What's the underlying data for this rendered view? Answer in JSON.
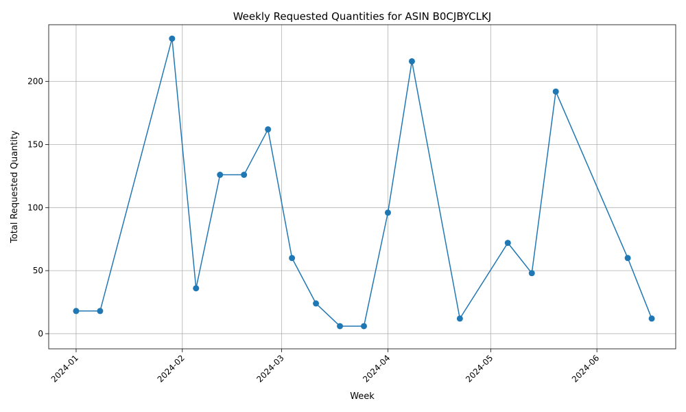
{
  "chart_data": {
    "type": "line",
    "title": "Weekly Requested Quantities for ASIN B0CJBYCLKJ",
    "xlabel": "Week",
    "ylabel": "Total Requested Quantity",
    "grid": true,
    "color": "#1f77b4",
    "x_range": [
      "2023-12-24",
      "2024-06-24"
    ],
    "ylim": [
      -12,
      245
    ],
    "x_ticks": [
      {
        "date": "2024-01-01",
        "label": "2024-01"
      },
      {
        "date": "2024-02-01",
        "label": "2024-02"
      },
      {
        "date": "2024-03-01",
        "label": "2024-03"
      },
      {
        "date": "2024-04-01",
        "label": "2024-04"
      },
      {
        "date": "2024-05-01",
        "label": "2024-05"
      },
      {
        "date": "2024-06-01",
        "label": "2024-06"
      }
    ],
    "y_ticks": [
      {
        "value": 0,
        "label": "0"
      },
      {
        "value": 50,
        "label": "50"
      },
      {
        "value": 100,
        "label": "100"
      },
      {
        "value": 150,
        "label": "150"
      },
      {
        "value": 200,
        "label": "200"
      }
    ],
    "series": [
      {
        "name": "Total Requested Quantity",
        "points": [
          {
            "x": "2024-01-01",
            "y": 18
          },
          {
            "x": "2024-01-08",
            "y": 18
          },
          {
            "x": "2024-01-29",
            "y": 234
          },
          {
            "x": "2024-02-05",
            "y": 36
          },
          {
            "x": "2024-02-12",
            "y": 126
          },
          {
            "x": "2024-02-19",
            "y": 126
          },
          {
            "x": "2024-02-26",
            "y": 162
          },
          {
            "x": "2024-03-04",
            "y": 60
          },
          {
            "x": "2024-03-11",
            "y": 24
          },
          {
            "x": "2024-03-18",
            "y": 6
          },
          {
            "x": "2024-03-25",
            "y": 6
          },
          {
            "x": "2024-04-01",
            "y": 96
          },
          {
            "x": "2024-04-08",
            "y": 216
          },
          {
            "x": "2024-04-22",
            "y": 12
          },
          {
            "x": "2024-05-06",
            "y": 72
          },
          {
            "x": "2024-05-13",
            "y": 48
          },
          {
            "x": "2024-05-20",
            "y": 192
          },
          {
            "x": "2024-06-10",
            "y": 60
          },
          {
            "x": "2024-06-17",
            "y": 12
          }
        ]
      }
    ]
  }
}
